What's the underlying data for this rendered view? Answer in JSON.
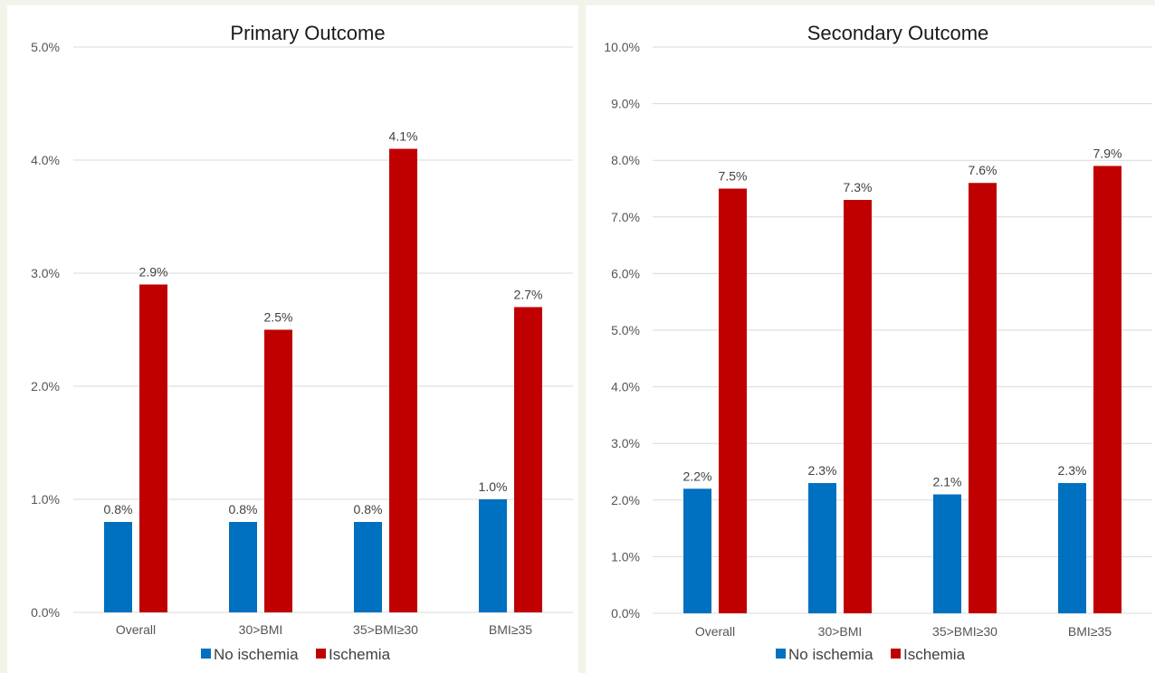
{
  "colors": {
    "no_ischemia": "#0070c0",
    "ischemia": "#c00000",
    "grid": "#d9d9d9"
  },
  "chart_data": [
    {
      "type": "bar",
      "title": "Primary Outcome",
      "categories": [
        "Overall",
        "30>BMI",
        "35>BMI≥30",
        "BMI≥35"
      ],
      "series": [
        {
          "name": "No ischemia",
          "values": [
            0.8,
            0.8,
            0.8,
            1.0
          ],
          "labels": [
            "0.8%",
            "0.8%",
            "0.8%",
            "1.0%"
          ]
        },
        {
          "name": "Ischemia",
          "values": [
            2.9,
            2.5,
            4.1,
            2.7
          ],
          "labels": [
            "2.9%",
            "2.5%",
            "4.1%",
            "2.7%"
          ]
        }
      ],
      "ylim": [
        0,
        5
      ],
      "yticks": [
        "0.0%",
        "1.0%",
        "2.0%",
        "3.0%",
        "4.0%",
        "5.0%"
      ],
      "grid": true,
      "legend": "bottom"
    },
    {
      "type": "bar",
      "title": "Secondary Outcome",
      "categories": [
        "Overall",
        "30>BMI",
        "35>BMI≥30",
        "BMI≥35"
      ],
      "series": [
        {
          "name": "No ischemia",
          "values": [
            2.2,
            2.3,
            2.1,
            2.3
          ],
          "labels": [
            "2.2%",
            "2.3%",
            "2.1%",
            "2.3%"
          ]
        },
        {
          "name": "Ischemia",
          "values": [
            7.5,
            7.3,
            7.6,
            7.9
          ],
          "labels": [
            "7.5%",
            "7.3%",
            "7.6%",
            "7.9%"
          ]
        }
      ],
      "ylim": [
        0,
        10
      ],
      "yticks": [
        "0.0%",
        "1.0%",
        "2.0%",
        "3.0%",
        "4.0%",
        "5.0%",
        "6.0%",
        "7.0%",
        "8.0%",
        "9.0%",
        "10.0%"
      ],
      "grid": true,
      "legend": "bottom"
    }
  ]
}
